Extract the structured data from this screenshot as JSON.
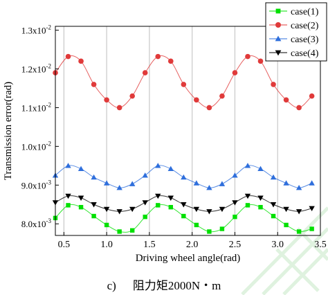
{
  "chart_data": {
    "type": "line",
    "xlabel": "Driving wheel angle(rad)",
    "ylabel": "Transmission error(rad)",
    "xlim": [
      0.4,
      3.5
    ],
    "ylim": [
      0.0077,
      0.0131
    ],
    "xticks": [
      {
        "value": 0.5,
        "label": "0.5"
      },
      {
        "value": 1.0,
        "label": "1.0"
      },
      {
        "value": 1.5,
        "label": "1.5"
      },
      {
        "value": 2.0,
        "label": "2.0"
      },
      {
        "value": 2.5,
        "label": "2.5"
      },
      {
        "value": 3.0,
        "label": "3.0"
      },
      {
        "value": 3.5,
        "label": "3.5"
      }
    ],
    "yticks": [
      {
        "value": 0.008,
        "mantissa": "8.0x10",
        "exp": "-3"
      },
      {
        "value": 0.009,
        "mantissa": "9.0x10",
        "exp": "-3"
      },
      {
        "value": 0.01,
        "mantissa": "1.0x10",
        "exp": "-2"
      },
      {
        "value": 0.011,
        "mantissa": "1.1x10",
        "exp": "-2"
      },
      {
        "value": 0.012,
        "mantissa": "1.2x10",
        "exp": "-2"
      },
      {
        "value": 0.013,
        "mantissa": "1.3x10",
        "exp": "-2"
      }
    ],
    "grid": {
      "vertical": true,
      "horizontal": false
    },
    "legend_position": "top-right",
    "x": [
      0.4,
      0.55,
      0.7,
      0.85,
      1.0,
      1.15,
      1.3,
      1.45,
      1.6,
      1.75,
      1.9,
      2.05,
      2.2,
      2.35,
      2.5,
      2.65,
      2.8,
      2.95,
      3.1,
      3.25,
      3.4
    ],
    "series": [
      {
        "name": "case(1)",
        "marker": "square",
        "color": "#00e000",
        "values": [
          0.00815,
          0.00848,
          0.00843,
          0.0082,
          0.00797,
          0.0078,
          0.00783,
          0.00818,
          0.00848,
          0.00843,
          0.0082,
          0.00797,
          0.0078,
          0.00787,
          0.00818,
          0.00848,
          0.00843,
          0.0082,
          0.00797,
          0.0078,
          0.00787
        ]
      },
      {
        "name": "case(2)",
        "marker": "circle",
        "color": "#e03a3a",
        "values": [
          0.0119,
          0.01232,
          0.0122,
          0.0116,
          0.0112,
          0.011,
          0.0113,
          0.0119,
          0.01232,
          0.0122,
          0.0116,
          0.0112,
          0.011,
          0.0113,
          0.0119,
          0.01232,
          0.0122,
          0.0116,
          0.0112,
          0.011,
          0.0113
        ]
      },
      {
        "name": "case(3)",
        "marker": "triangle-up",
        "color": "#2f6fdc",
        "values": [
          0.00925,
          0.0095,
          0.00942,
          0.0092,
          0.00905,
          0.00893,
          0.00903,
          0.00925,
          0.0095,
          0.00942,
          0.0092,
          0.00905,
          0.00893,
          0.00903,
          0.00925,
          0.0095,
          0.00942,
          0.0092,
          0.00905,
          0.00893,
          0.00905
        ]
      },
      {
        "name": "case(4)",
        "marker": "triangle-down",
        "color": "#000000",
        "values": [
          0.00855,
          0.00872,
          0.00867,
          0.0085,
          0.00838,
          0.00832,
          0.00838,
          0.00855,
          0.00872,
          0.00867,
          0.0085,
          0.00838,
          0.00832,
          0.00838,
          0.00855,
          0.00872,
          0.00867,
          0.0085,
          0.00838,
          0.00832,
          0.0084
        ]
      }
    ]
  },
  "caption": {
    "letter": "c)",
    "text": "阻力矩2000N・m"
  }
}
